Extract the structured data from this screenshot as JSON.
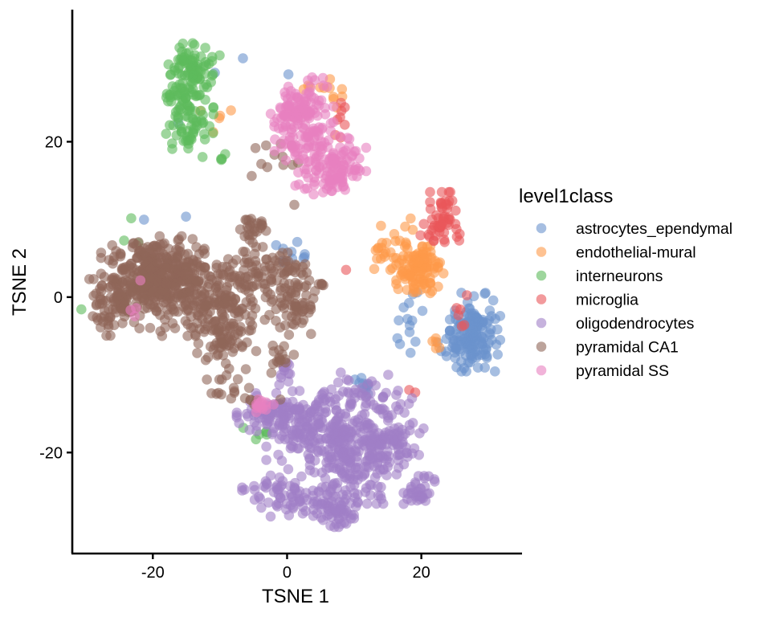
{
  "chart_data": {
    "type": "scatter",
    "xlabel": "TSNE 1",
    "ylabel": "TSNE 2",
    "xlim": [
      -32,
      35
    ],
    "ylim": [
      -33,
      37
    ],
    "xticks": [
      -20,
      0,
      20
    ],
    "yticks": [
      -20,
      0,
      20
    ],
    "x_tick_labels": [
      "-20",
      "0",
      "20"
    ],
    "y_tick_labels": [
      "-20",
      "0",
      "20"
    ],
    "grid": false,
    "legend_title": "level1class",
    "legend_position": "right",
    "point_opacity": 0.6,
    "series": [
      {
        "name": "astrocytes_ependymal",
        "color": "#6a93cd",
        "clusters": [
          {
            "cx": 28,
            "cy": -4.5,
            "sx": 1.7,
            "sy": 2.3,
            "n": 140
          },
          {
            "cx": 25,
            "cy": -6.5,
            "sx": 1.2,
            "sy": 0.6,
            "n": 20
          },
          {
            "cx": 18,
            "cy": -3.5,
            "sx": 1.0,
            "sy": 2.5,
            "n": 14
          },
          {
            "cx": 0.5,
            "cy": 5.5,
            "sx": 2.5,
            "sy": 1.0,
            "n": 10
          },
          {
            "cx": 11,
            "cy": -11.5,
            "sx": 1.5,
            "sy": 0.5,
            "n": 10
          },
          {
            "cx": -13,
            "cy": 22,
            "sx": 6,
            "sy": 6,
            "n": 6
          }
        ]
      },
      {
        "name": "endothelial-mural",
        "color": "#fd9a4a",
        "clusters": [
          {
            "cx": 20,
            "cy": 3.5,
            "sx": 1.7,
            "sy": 1.5,
            "n": 90
          },
          {
            "cx": 16.5,
            "cy": 5.5,
            "sx": 2.0,
            "sy": 2.2,
            "n": 45
          },
          {
            "cx": 5,
            "cy": 26.5,
            "sx": 2.2,
            "sy": 1.2,
            "n": 12
          },
          {
            "cx": -12,
            "cy": 22.5,
            "sx": 2.0,
            "sy": 1.5,
            "n": 5
          },
          {
            "cx": 23,
            "cy": -6,
            "sx": 0.8,
            "sy": 0.5,
            "n": 5
          }
        ]
      },
      {
        "name": "interneurons",
        "color": "#5dbb5b",
        "clusters": [
          {
            "cx": -14,
            "cy": 30,
            "sx": 1.8,
            "sy": 1.8,
            "n": 70
          },
          {
            "cx": -15,
            "cy": 26,
            "sx": 1.5,
            "sy": 1.6,
            "n": 50
          },
          {
            "cx": -14.5,
            "cy": 22,
            "sx": 1.6,
            "sy": 1.8,
            "n": 55
          },
          {
            "cx": -10,
            "cy": 17.5,
            "sx": 0.8,
            "sy": 0.6,
            "n": 4
          },
          {
            "cx": -25,
            "cy": 3,
            "sx": 3,
            "sy": 5,
            "n": 4
          },
          {
            "cx": -4,
            "cy": -17.5,
            "sx": 1.2,
            "sy": 0.5,
            "n": 6
          }
        ]
      },
      {
        "name": "microglia",
        "color": "#e9575a",
        "clusters": [
          {
            "cx": 23.5,
            "cy": 10,
            "sx": 1.0,
            "sy": 1.6,
            "n": 45
          },
          {
            "cx": 21.5,
            "cy": 8.5,
            "sx": 1.0,
            "sy": 0.8,
            "n": 12
          },
          {
            "cx": 8,
            "cy": 23,
            "sx": 0.8,
            "sy": 1.5,
            "n": 8
          },
          {
            "cx": 26,
            "cy": -1.5,
            "sx": 0.6,
            "sy": 1.2,
            "n": 6
          },
          {
            "cx": 9,
            "cy": 3.5,
            "sx": 0.4,
            "sy": 0.4,
            "n": 1
          },
          {
            "cx": 19,
            "cy": -12,
            "sx": 0.5,
            "sy": 0.5,
            "n": 2
          }
        ]
      },
      {
        "name": "oligodendrocytes",
        "color": "#a07fc6",
        "clusters": [
          {
            "cx": 10,
            "cy": -20,
            "sx": 3.0,
            "sy": 3.0,
            "n": 220
          },
          {
            "cx": 3.5,
            "cy": -17,
            "sx": 3.0,
            "sy": 2.4,
            "n": 120
          },
          {
            "cx": -2,
            "cy": -15,
            "sx": 2.5,
            "sy": 1.2,
            "n": 90
          },
          {
            "cx": 1,
            "cy": -25.5,
            "sx": 3.5,
            "sy": 1.3,
            "n": 80
          },
          {
            "cx": 7,
            "cy": -27.5,
            "sx": 1.6,
            "sy": 1.2,
            "n": 55
          },
          {
            "cx": 15.5,
            "cy": -18.5,
            "sx": 2.2,
            "sy": 1.8,
            "n": 60
          },
          {
            "cx": 20,
            "cy": -25,
            "sx": 1.2,
            "sy": 0.9,
            "n": 35
          },
          {
            "cx": 12,
            "cy": -13,
            "sx": 3.5,
            "sy": 1.5,
            "n": 55
          },
          {
            "cx": 0,
            "cy": -10,
            "sx": 0.8,
            "sy": 1.0,
            "n": 12
          }
        ]
      },
      {
        "name": "pyramidal CA1",
        "color": "#8f6659",
        "clusters": [
          {
            "cx": -20,
            "cy": 3,
            "sx": 3.5,
            "sy": 2.2,
            "n": 280
          },
          {
            "cx": -14,
            "cy": 0.5,
            "sx": 4.0,
            "sy": 2.5,
            "n": 220
          },
          {
            "cx": -25.5,
            "cy": -1,
            "sx": 2.0,
            "sy": 1.8,
            "n": 90
          },
          {
            "cx": -9,
            "cy": -4,
            "sx": 2.0,
            "sy": 3.0,
            "n": 100
          },
          {
            "cx": -5.5,
            "cy": 2.5,
            "sx": 1.8,
            "sy": 1.8,
            "n": 50
          },
          {
            "cx": -5,
            "cy": 8.5,
            "sx": 0.9,
            "sy": 1.0,
            "n": 25
          },
          {
            "cx": 1,
            "cy": 0,
            "sx": 2.0,
            "sy": 2.2,
            "n": 80
          },
          {
            "cx": 0,
            "cy": 4,
            "sx": 1.5,
            "sy": 1.0,
            "n": 25
          },
          {
            "cx": -1,
            "cy": -8,
            "sx": 1.0,
            "sy": 0.8,
            "n": 15
          },
          {
            "cx": -6.5,
            "cy": -13,
            "sx": 2.5,
            "sy": 0.6,
            "n": 15
          },
          {
            "cx": -2,
            "cy": 18,
            "sx": 2.5,
            "sy": 1.5,
            "n": 12
          },
          {
            "cx": 1,
            "cy": 11,
            "sx": 0.4,
            "sy": 0.4,
            "n": 1
          }
        ]
      },
      {
        "name": "pyramidal SS",
        "color": "#e781c0",
        "clusters": [
          {
            "cx": 2.5,
            "cy": 23,
            "sx": 2.0,
            "sy": 2.4,
            "n": 130
          },
          {
            "cx": 6.5,
            "cy": 17,
            "sx": 2.4,
            "sy": 2.0,
            "n": 130
          },
          {
            "cx": 0,
            "cy": 22,
            "sx": 1.2,
            "sy": 2.0,
            "n": 25
          },
          {
            "cx": -4,
            "cy": -14,
            "sx": 0.9,
            "sy": 0.6,
            "n": 15
          },
          {
            "cx": -22.5,
            "cy": -1,
            "sx": 0.6,
            "sy": 2.5,
            "n": 4
          }
        ]
      }
    ]
  }
}
